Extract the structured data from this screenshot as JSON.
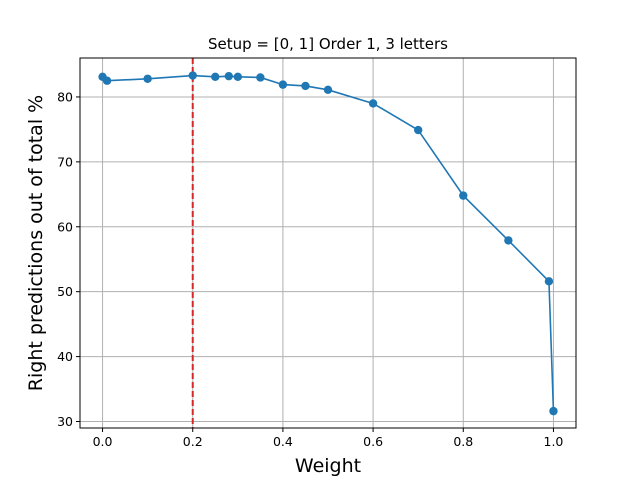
{
  "chart_data": {
    "type": "line",
    "title": "Setup = [0, 1] Order 1, 3 letters",
    "xlabel": "Weight",
    "ylabel": "Right predictions out of total %",
    "xlim": [
      -0.05,
      1.05
    ],
    "ylim": [
      29,
      86
    ],
    "xticks": [
      0.0,
      0.2,
      0.4,
      0.6,
      0.8,
      1.0
    ],
    "xtick_labels": [
      "0.0",
      "0.2",
      "0.4",
      "0.6",
      "0.8",
      "1.0"
    ],
    "yticks": [
      30,
      40,
      50,
      60,
      70,
      80
    ],
    "ytick_labels": [
      "30",
      "40",
      "50",
      "60",
      "70",
      "80"
    ],
    "grid": true,
    "series": [
      {
        "color": "#1f77b4",
        "marker": "circle",
        "x": [
          0.0,
          0.01,
          0.1,
          0.2,
          0.25,
          0.28,
          0.3,
          0.35,
          0.4,
          0.45,
          0.5,
          0.6,
          0.7,
          0.8,
          0.9,
          0.99,
          1.0
        ],
        "y": [
          83.1,
          82.5,
          82.8,
          83.3,
          83.1,
          83.2,
          83.1,
          83.0,
          81.9,
          81.7,
          81.1,
          79.0,
          74.9,
          64.8,
          57.9,
          51.6,
          31.6
        ]
      }
    ],
    "annotations": [
      {
        "type": "vline",
        "x": 0.2,
        "color": "#d62728",
        "style": "dashed"
      }
    ]
  }
}
